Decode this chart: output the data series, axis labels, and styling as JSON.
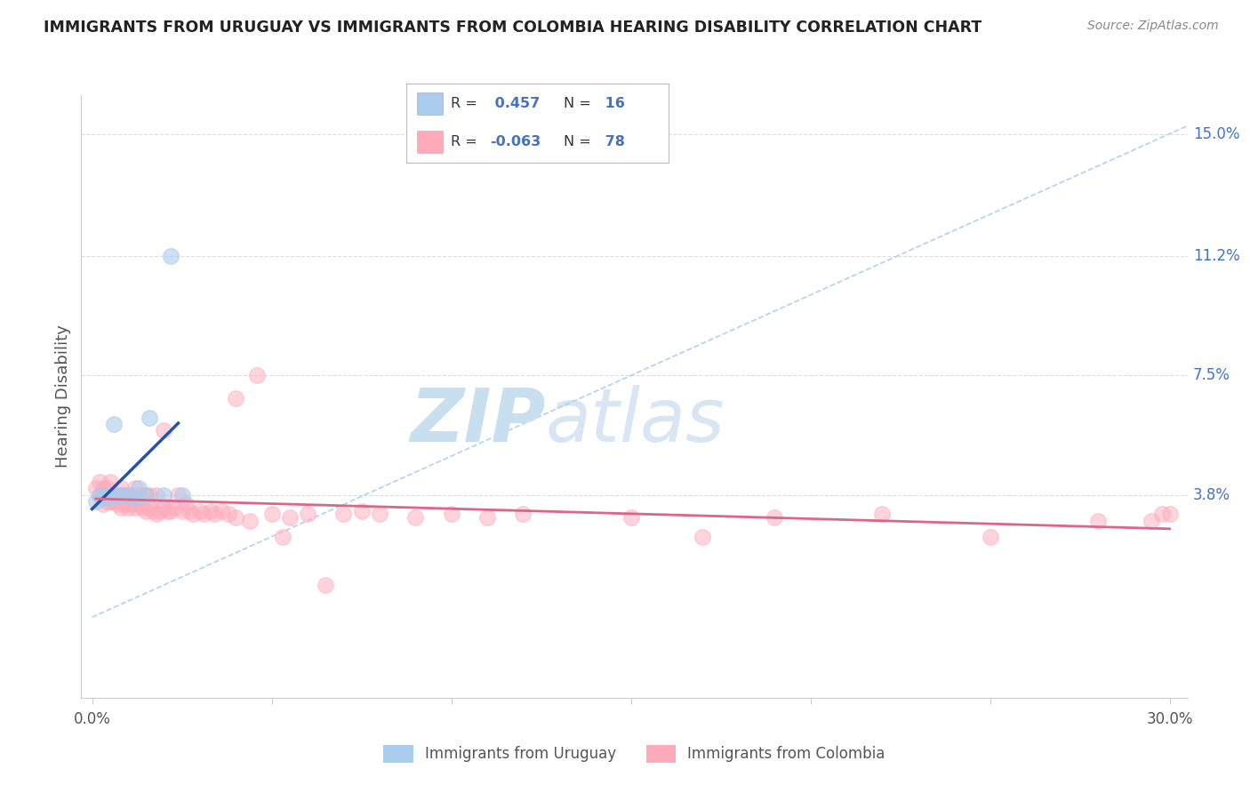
{
  "title": "IMMIGRANTS FROM URUGUAY VS IMMIGRANTS FROM COLOMBIA HEARING DISABILITY CORRELATION CHART",
  "source": "Source: ZipAtlas.com",
  "ylabel": "Hearing Disability",
  "xlim": [
    -0.003,
    0.305
  ],
  "ylim": [
    -0.025,
    0.162
  ],
  "xtick_positions": [
    0.0,
    0.05,
    0.1,
    0.15,
    0.2,
    0.25,
    0.3
  ],
  "xticklabels": [
    "0.0%",
    "",
    "",
    "",
    "",
    "",
    "30.0%"
  ],
  "ytick_positions": [
    0.038,
    0.075,
    0.112,
    0.15
  ],
  "ytick_labels": [
    "3.8%",
    "7.5%",
    "11.2%",
    "15.0%"
  ],
  "uruguay_R": 0.457,
  "uruguay_N": 16,
  "colombia_R": -0.063,
  "colombia_N": 78,
  "uruguay_color": "#aaccee",
  "colombia_color": "#ffaabb",
  "uruguay_line_color": "#2255aa",
  "colombia_line_color": "#dd6688",
  "diag_line_color": "#aaccee",
  "background_color": "#ffffff",
  "grid_color": "#dddddd",
  "uruguay_x": [
    0.001,
    0.002,
    0.003,
    0.004,
    0.005,
    0.006,
    0.007,
    0.008,
    0.01,
    0.012,
    0.013,
    0.015,
    0.016,
    0.02,
    0.022,
    0.025
  ],
  "uruguay_y": [
    0.036,
    0.038,
    0.037,
    0.038,
    0.037,
    0.06,
    0.038,
    0.038,
    0.038,
    0.037,
    0.04,
    0.038,
    0.062,
    0.038,
    0.112,
    0.038
  ],
  "colombia_x": [
    0.001,
    0.002,
    0.002,
    0.003,
    0.003,
    0.003,
    0.004,
    0.004,
    0.005,
    0.005,
    0.005,
    0.006,
    0.006,
    0.007,
    0.007,
    0.008,
    0.008,
    0.008,
    0.009,
    0.009,
    0.01,
    0.01,
    0.011,
    0.011,
    0.012,
    0.012,
    0.013,
    0.013,
    0.014,
    0.015,
    0.015,
    0.016,
    0.016,
    0.017,
    0.018,
    0.018,
    0.019,
    0.02,
    0.02,
    0.021,
    0.022,
    0.023,
    0.024,
    0.025,
    0.026,
    0.027,
    0.028,
    0.03,
    0.031,
    0.033,
    0.034,
    0.036,
    0.038,
    0.04,
    0.04,
    0.044,
    0.046,
    0.05,
    0.053,
    0.055,
    0.06,
    0.065,
    0.07,
    0.075,
    0.08,
    0.09,
    0.1,
    0.11,
    0.12,
    0.15,
    0.17,
    0.19,
    0.22,
    0.25,
    0.28,
    0.295,
    0.298,
    0.3
  ],
  "colombia_y": [
    0.04,
    0.038,
    0.042,
    0.035,
    0.038,
    0.04,
    0.036,
    0.04,
    0.036,
    0.038,
    0.042,
    0.036,
    0.038,
    0.035,
    0.038,
    0.034,
    0.038,
    0.04,
    0.035,
    0.038,
    0.034,
    0.038,
    0.035,
    0.038,
    0.034,
    0.04,
    0.035,
    0.038,
    0.034,
    0.033,
    0.038,
    0.034,
    0.038,
    0.033,
    0.032,
    0.038,
    0.033,
    0.034,
    0.058,
    0.033,
    0.033,
    0.034,
    0.038,
    0.033,
    0.035,
    0.033,
    0.032,
    0.033,
    0.032,
    0.033,
    0.032,
    0.033,
    0.032,
    0.031,
    0.068,
    0.03,
    0.075,
    0.032,
    0.025,
    0.031,
    0.032,
    0.01,
    0.032,
    0.033,
    0.032,
    0.031,
    0.032,
    0.031,
    0.032,
    0.031,
    0.025,
    0.031,
    0.032,
    0.025,
    0.03,
    0.03,
    0.032,
    0.032
  ]
}
